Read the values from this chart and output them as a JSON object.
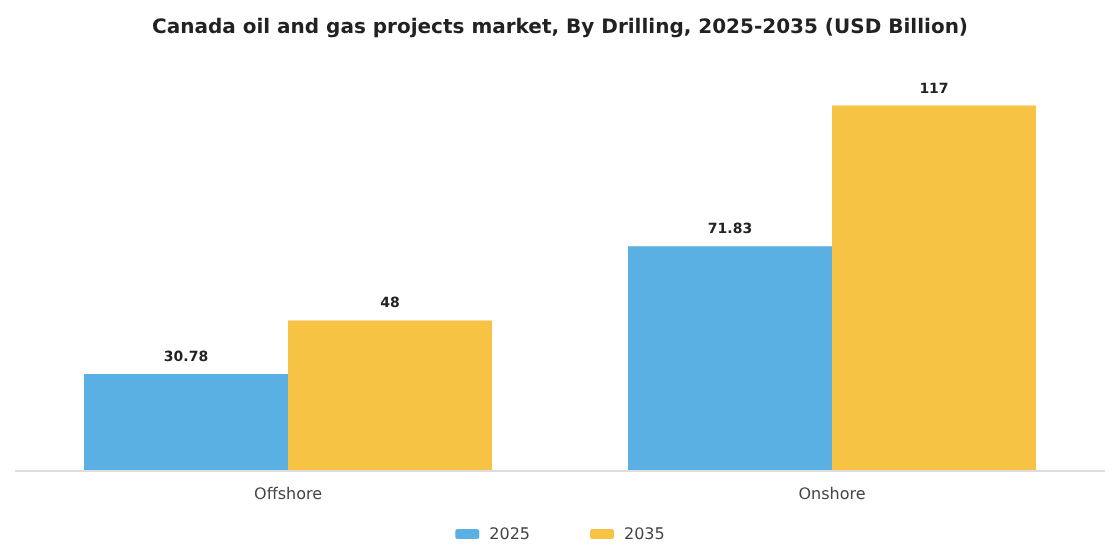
{
  "chart_data": {
    "type": "bar",
    "title": "Canada oil and gas projects market, By Drilling, 2025-2035 (USD Billion)",
    "categories": [
      "Offshore",
      "Onshore"
    ],
    "series": [
      {
        "name": "2025",
        "color": "#5aafe3",
        "values": [
          30.78,
          71.83
        ]
      },
      {
        "name": "2035",
        "color": "#f7c344",
        "values": [
          48,
          117
        ]
      }
    ],
    "data_labels": true,
    "legend": "bottom",
    "grid": false
  }
}
